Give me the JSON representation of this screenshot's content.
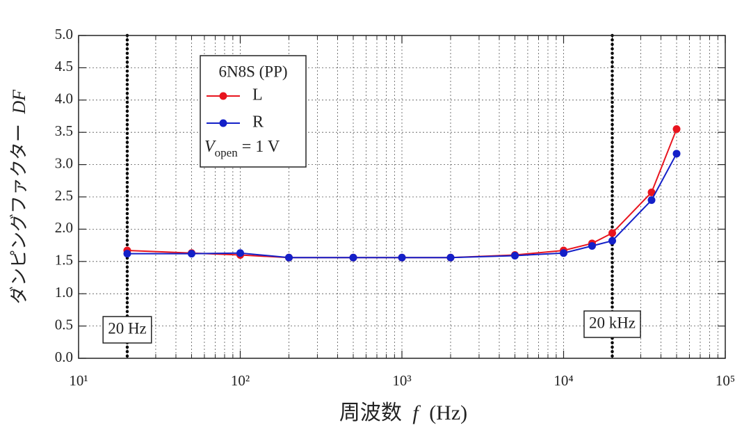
{
  "chart_data": {
    "type": "line",
    "xlabel": "周波数",
    "xlabel_symbol": "f",
    "xlabel_unit": "(Hz)",
    "ylabel": "ダンピングファクター",
    "ylabel_symbol": "DF",
    "x": [
      20,
      50,
      100,
      200,
      500,
      1000,
      2000,
      5000,
      10000,
      15000,
      20000,
      35000,
      50000
    ],
    "series": [
      {
        "name": "L",
        "color": "#e8141e",
        "values": [
          1.67,
          1.63,
          1.6,
          1.56,
          1.56,
          1.56,
          1.56,
          1.6,
          1.67,
          1.78,
          1.94,
          2.57,
          3.55
        ]
      },
      {
        "name": "R",
        "color": "#1420c8",
        "values": [
          1.62,
          1.62,
          1.63,
          1.56,
          1.56,
          1.56,
          1.56,
          1.59,
          1.63,
          1.74,
          1.82,
          2.45,
          3.17
        ]
      }
    ],
    "xscale": "log",
    "xlim": [
      10,
      100000
    ],
    "xticks": [
      {
        "value": 10,
        "label": "10¹"
      },
      {
        "value": 100,
        "label": "10²"
      },
      {
        "value": 1000,
        "label": "10³"
      },
      {
        "value": 10000,
        "label": "10⁴"
      },
      {
        "value": 100000,
        "label": "10⁵"
      }
    ],
    "ylim": [
      0,
      5
    ],
    "yticks": [
      {
        "value": 0,
        "label": "0.0"
      },
      0.5,
      {
        "value": 1,
        "label": "1.0"
      },
      1.5,
      {
        "value": 2,
        "label": "2.0"
      },
      2.5,
      {
        "value": 3,
        "label": "3.0"
      },
      3.5,
      {
        "value": 4,
        "label": "4.0"
      },
      4.5,
      {
        "value": 5,
        "label": "5.0"
      }
    ],
    "grid": true,
    "legend_title": "6N8S (PP)",
    "legend_note": {
      "symbol": "V",
      "subscript": "open",
      "text": "= 1 V"
    },
    "annotations": [
      {
        "text": "20 Hz",
        "x": 20
      },
      {
        "text": "20 kHz",
        "x": 20000
      }
    ]
  }
}
